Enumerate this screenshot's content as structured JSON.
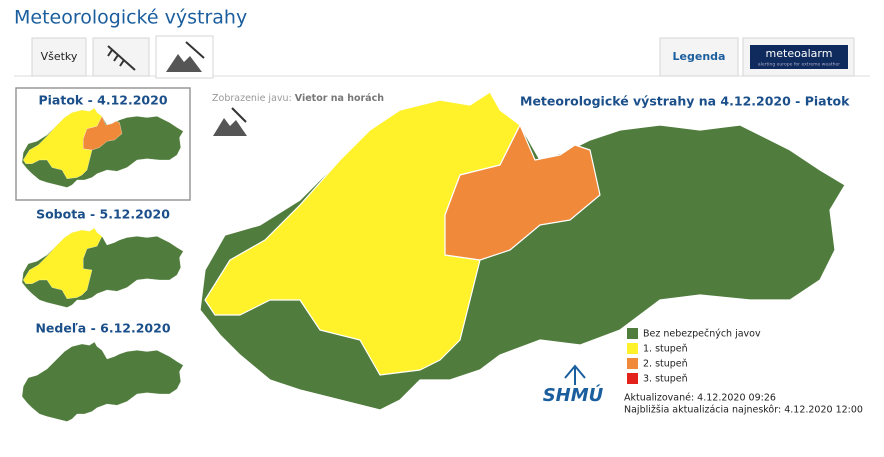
{
  "header": {
    "title": "Meteorologické výstrahy"
  },
  "tabs": {
    "all": "Všetky",
    "legend": "Legenda"
  },
  "meteoalarm": {
    "name": "meteoalarm",
    "tagline": "alerting europe for extreme weather"
  },
  "days": [
    "Piatok - 4.12.2020",
    "Sobota - 5.12.2020",
    "Nedeľa - 6.12.2020"
  ],
  "phenomenon": {
    "label": "Zobrazenie javu:",
    "value": "Vietor na horách"
  },
  "map": {
    "title": "Meteorologické výstrahy na 4.12.2020 - Piatok"
  },
  "legend": [
    {
      "label": "Bez nebezpečných javov",
      "color": "#507c3d"
    },
    {
      "label": "1. stupeň",
      "color": "#fff22a"
    },
    {
      "label": "2. stupeň",
      "color": "#f0893a"
    },
    {
      "label": "3. stupeň",
      "color": "#e3231b"
    }
  ],
  "logo": {
    "text": "SHMÚ"
  },
  "updates": {
    "updated": "Aktualizované: 4.12.2020 09:26",
    "next": "Najbližšia aktualizácia najneskôr: 4.12.2020 12:00"
  }
}
